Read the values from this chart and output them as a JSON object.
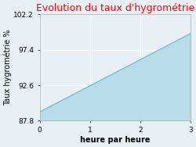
{
  "title": "Evolution du taux d'hygrométrie",
  "title_color": "#ff0000",
  "xlabel": "heure par heure",
  "ylabel": "Taux hygrométrie %",
  "x_data": [
    0,
    3
  ],
  "y_data": [
    89.0,
    99.6
  ],
  "y_baseline": 87.8,
  "yticks": [
    87.8,
    92.6,
    97.4,
    102.2
  ],
  "xticks": [
    0,
    1,
    2,
    3
  ],
  "ylim": [
    87.8,
    102.2
  ],
  "xlim": [
    0,
    3
  ],
  "fill_color": "#b8dde8",
  "line_color": "#5bb8d4",
  "fig_bg_color": "#e8f0f5",
  "plot_bg_color": "#e8f0f5",
  "grid_color": "#ffffff",
  "title_fontsize": 9,
  "label_fontsize": 7,
  "tick_fontsize": 6.5
}
